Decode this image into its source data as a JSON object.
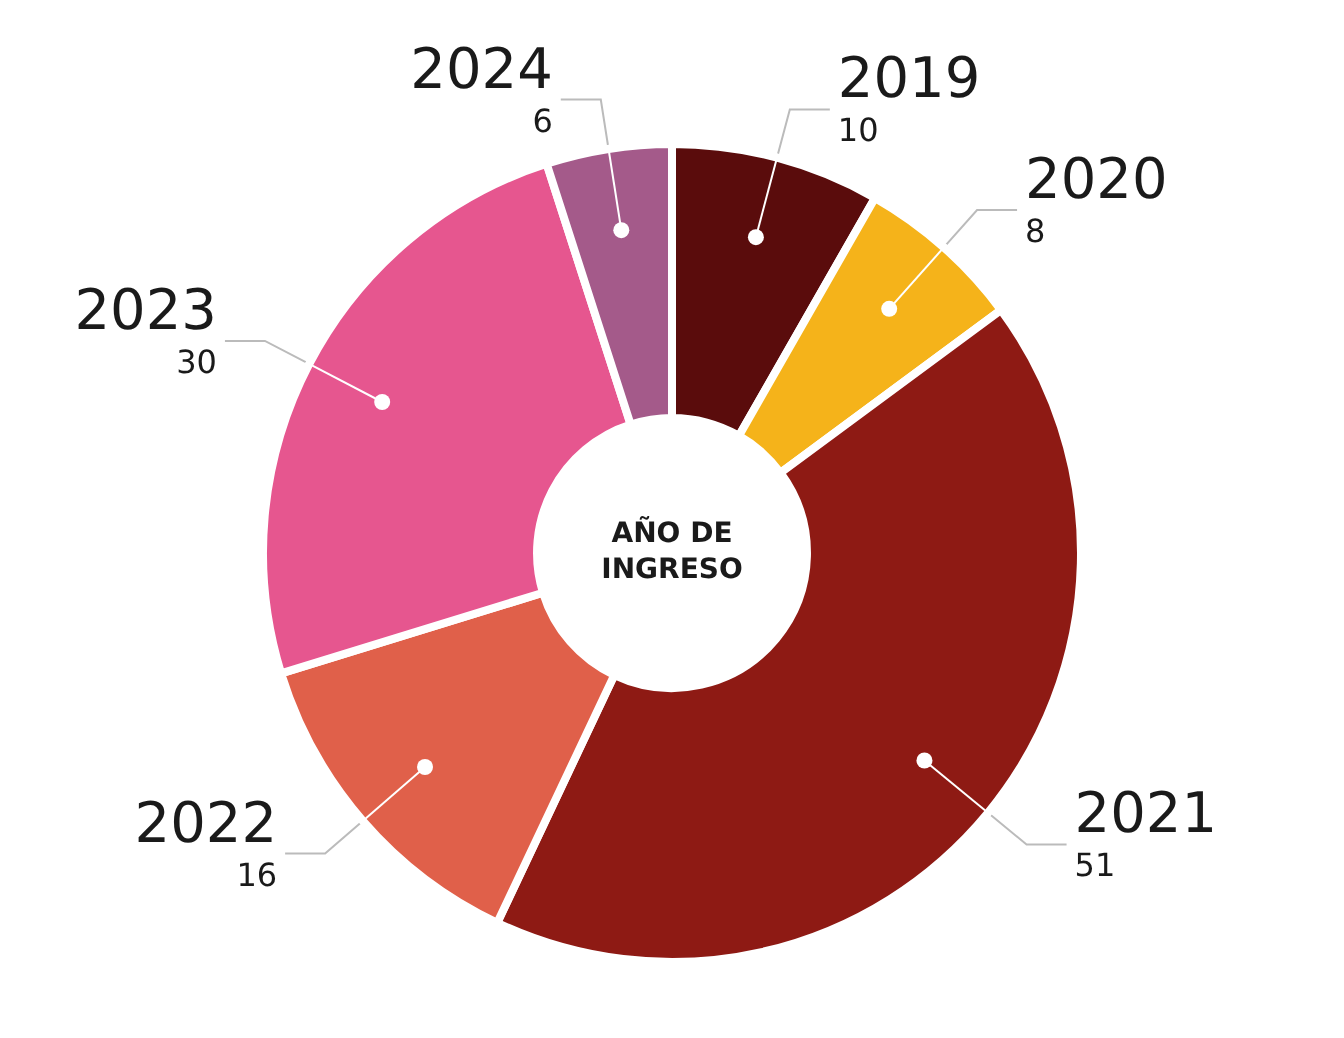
{
  "chart_data": {
    "type": "donut",
    "title": "AÑO DE INGRESO",
    "categories": [
      "2019",
      "2020",
      "2021",
      "2022",
      "2023",
      "2024"
    ],
    "values": [
      10,
      8,
      51,
      16,
      30,
      6
    ],
    "colors": [
      "#5a0c0c",
      "#f5b31a",
      "#8e1a14",
      "#e0604a",
      "#e6568f",
      "#a45a8a"
    ],
    "data_labels": true,
    "legend": false
  }
}
